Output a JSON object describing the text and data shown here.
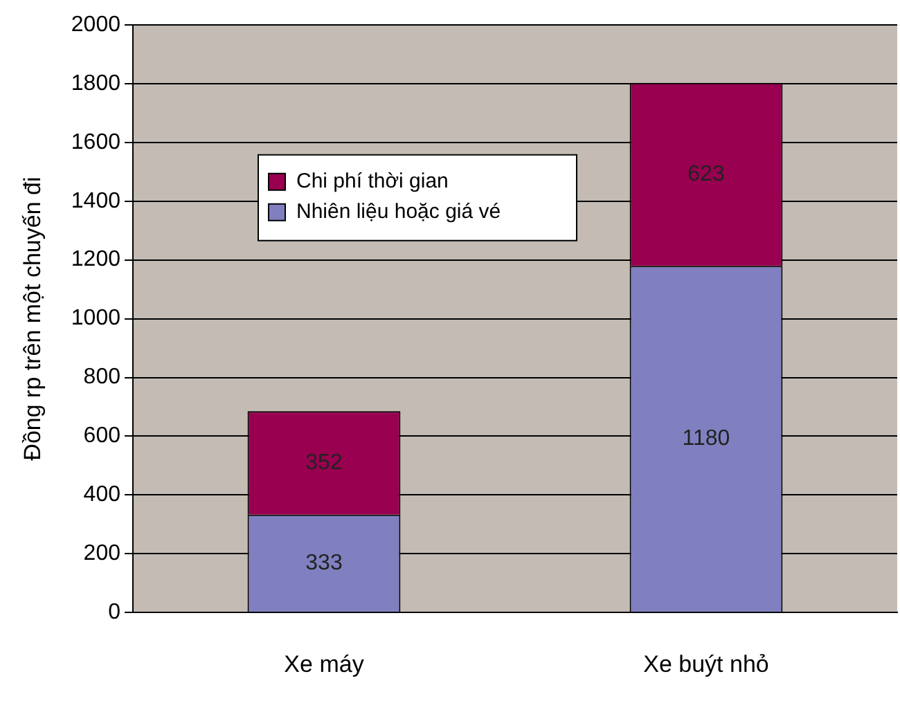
{
  "chart_data": {
    "type": "bar",
    "stacked": true,
    "categories": [
      "Xe máy",
      "Xe buýt nhỏ"
    ],
    "ylabel": "Đồng rp trên một chuyến đi",
    "series": [
      {
        "name": "Nhiên liệu hoặc giá vé",
        "color": "#8080c0",
        "values": [
          333,
          1180
        ]
      },
      {
        "name": "Chi phí thời gian",
        "color": "#990050",
        "values": [
          352,
          623
        ]
      }
    ],
    "ylim": [
      0,
      2000
    ],
    "yticks": [
      0,
      200,
      400,
      600,
      800,
      1000,
      1200,
      1400,
      1600,
      1800,
      2000
    ],
    "grid": "y",
    "legend": "left",
    "data_labels": true
  }
}
